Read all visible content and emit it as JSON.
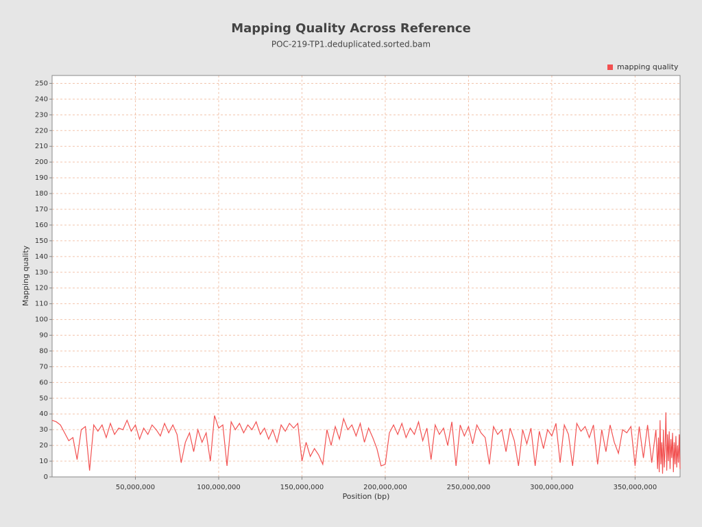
{
  "chart_data": {
    "type": "line",
    "title": "Mapping Quality Across Reference",
    "subtitle": "POC-219-TP1.deduplicated.sorted.bam",
    "x_label": "Position (bp)",
    "y_label": "Mapping quality",
    "legend": "top-right",
    "grid": true,
    "xlim": [
      0,
      377000000
    ],
    "ylim": [
      0,
      255
    ],
    "xticks": [
      {
        "value": 50000000,
        "label": "50,000,000"
      },
      {
        "value": 100000000,
        "label": "100,000,000"
      },
      {
        "value": 150000000,
        "label": "150,000,000"
      },
      {
        "value": 200000000,
        "label": "200,000,000"
      },
      {
        "value": 250000000,
        "label": "250,000,000"
      },
      {
        "value": 300000000,
        "label": "300,000,000"
      },
      {
        "value": 350000000,
        "label": "350,000,000"
      }
    ],
    "yticks": [
      0,
      10,
      20,
      30,
      40,
      50,
      60,
      70,
      80,
      90,
      100,
      110,
      120,
      130,
      140,
      150,
      160,
      170,
      180,
      190,
      200,
      210,
      220,
      230,
      240,
      250
    ],
    "x": [
      0,
      2500000,
      5000000,
      7500000,
      10000000,
      12500000,
      15000000,
      17500000,
      20000000,
      22500000,
      25000000,
      27500000,
      30000000,
      32500000,
      35000000,
      37500000,
      40000000,
      42500000,
      45000000,
      47500000,
      50000000,
      52500000,
      55000000,
      57500000,
      60000000,
      62500000,
      65000000,
      67500000,
      70000000,
      72500000,
      75000000,
      77500000,
      80000000,
      82500000,
      85000000,
      87500000,
      90000000,
      92500000,
      95000000,
      97500000,
      100000000,
      102500000,
      105000000,
      107500000,
      110000000,
      112500000,
      115000000,
      117500000,
      120000000,
      122500000,
      125000000,
      127500000,
      130000000,
      132500000,
      135000000,
      137500000,
      140000000,
      142500000,
      145000000,
      147500000,
      150000000,
      152500000,
      155000000,
      157500000,
      160000000,
      162500000,
      165000000,
      167500000,
      170000000,
      172500000,
      175000000,
      177500000,
      180000000,
      182500000,
      185000000,
      187500000,
      190000000,
      192500000,
      195000000,
      197500000,
      200000000,
      202500000,
      205000000,
      207500000,
      210000000,
      212500000,
      215000000,
      217500000,
      220000000,
      222500000,
      225000000,
      227500000,
      230000000,
      232500000,
      235000000,
      237500000,
      240000000,
      242500000,
      245000000,
      247500000,
      250000000,
      252500000,
      255000000,
      257500000,
      260000000,
      262500000,
      265000000,
      267500000,
      270000000,
      272500000,
      275000000,
      277500000,
      280000000,
      282500000,
      285000000,
      287500000,
      290000000,
      292500000,
      295000000,
      297500000,
      300000000,
      302500000,
      305000000,
      307500000,
      310000000,
      312500000,
      315000000,
      317500000,
      320000000,
      322500000,
      325000000,
      327500000,
      330000000,
      332500000,
      335000000,
      337500000,
      340000000,
      342500000,
      345000000,
      347500000,
      350000000,
      352500000,
      355000000,
      357500000,
      360000000,
      362500000,
      363500000,
      364000000,
      364500000,
      365000000,
      365500000,
      366000000,
      366500000,
      367000000,
      367500000,
      368000000,
      368500000,
      369000000,
      369500000,
      370000000,
      370500000,
      371000000,
      371500000,
      372000000,
      372500000,
      373000000,
      373500000,
      374000000,
      374500000,
      375000000,
      375500000,
      376000000,
      376500000,
      377000000
    ],
    "series": [
      {
        "name": "mapping quality",
        "color": "#f25050",
        "values": [
          36,
          35,
          33,
          28,
          23,
          25,
          11,
          30,
          32,
          4,
          33,
          29,
          33,
          25,
          34,
          27,
          31,
          30,
          36,
          29,
          33,
          24,
          31,
          27,
          33,
          30,
          26,
          34,
          28,
          33,
          27,
          9,
          22,
          28,
          16,
          30,
          22,
          28,
          10,
          39,
          31,
          33,
          7,
          35,
          30,
          34,
          28,
          33,
          30,
          35,
          27,
          31,
          24,
          30,
          22,
          33,
          29,
          34,
          31,
          34,
          10,
          22,
          13,
          18,
          14,
          8,
          30,
          20,
          32,
          24,
          37,
          30,
          33,
          26,
          34,
          22,
          31,
          25,
          18,
          7,
          8,
          28,
          33,
          27,
          34,
          25,
          31,
          27,
          35,
          23,
          31,
          11,
          33,
          27,
          31,
          20,
          35,
          7,
          33,
          26,
          32,
          21,
          33,
          28,
          25,
          8,
          32,
          27,
          30,
          16,
          31,
          23,
          7,
          30,
          21,
          31,
          7,
          29,
          18,
          30,
          26,
          34,
          9,
          33,
          27,
          7,
          34,
          29,
          32,
          25,
          33,
          8,
          30,
          16,
          33,
          22,
          15,
          30,
          28,
          32,
          7,
          32,
          12,
          33,
          9,
          30,
          5,
          25,
          3,
          36,
          8,
          22,
          2,
          30,
          6,
          18,
          41,
          4,
          27,
          10,
          29,
          5,
          24,
          12,
          28,
          3,
          22,
          8,
          26,
          6,
          20,
          9,
          27,
          5
        ]
      }
    ]
  }
}
